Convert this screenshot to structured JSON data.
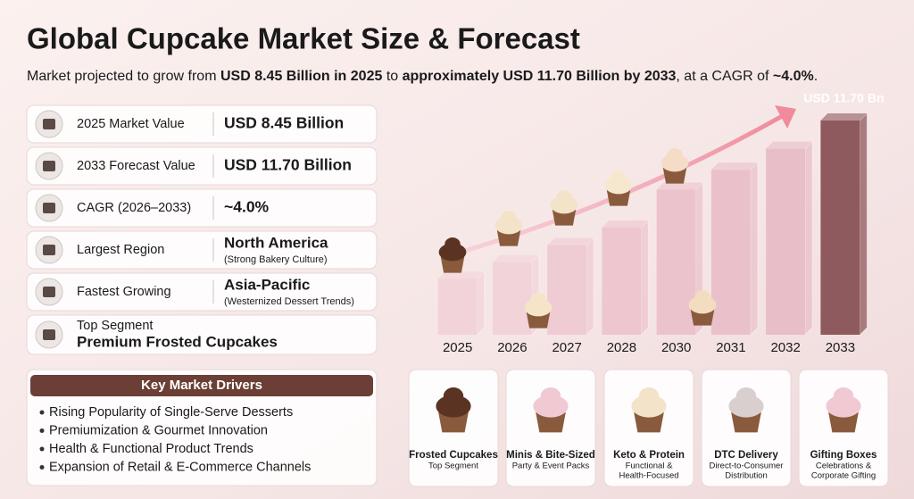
{
  "title": "Global Cupcake Market Size & Forecast",
  "subtitle": [
    {
      "text": "Market projected to grow from ",
      "bold": false
    },
    {
      "text": "USD 8.45 Billion in 2025",
      "bold": true
    },
    {
      "text": " to ",
      "bold": false
    },
    {
      "text": "approximately USD 11.70 Billion by 2033",
      "bold": true
    },
    {
      "text": ", at a CAGR of ",
      "bold": false
    },
    {
      "text": "~4.0%",
      "bold": true
    },
    {
      "text": ".",
      "bold": false
    }
  ],
  "metrics": [
    {
      "label": "2025 Market Value",
      "value": "USD 8.45 Billion"
    },
    {
      "label": "2033 Forecast Value",
      "value": "USD 11.70 Billion"
    },
    {
      "label": "CAGR (2026–2033)",
      "value": "~4.0%"
    },
    {
      "label": "Largest Region",
      "value": "North America",
      "note": "(Strong Bakery Culture)"
    },
    {
      "label": "Fastest Growing",
      "value": "Asia-Pacific",
      "note": "(Westernized Dessert Trends)"
    },
    {
      "label": "Top Segment",
      "value": "Premium Frosted Cupcakes"
    }
  ],
  "drivers": {
    "title": "Key Market Drivers",
    "items": [
      "Rising Popularity of Single-Serve Desserts",
      "Premiumization & Gourmet Innovation",
      "Health & Functional Product Trends",
      "Expansion of Retail & E-Commerce Channels"
    ]
  },
  "chart_data": {
    "type": "bar",
    "categories": [
      "2025",
      "2026",
      "2027",
      "2028",
      "2030",
      "2031",
      "2032",
      "2033"
    ],
    "values": [
      8.45,
      8.79,
      9.14,
      9.5,
      10.28,
      10.69,
      11.12,
      11.7
    ],
    "value_labels": [
      null,
      null,
      null,
      null,
      null,
      null,
      null,
      "USD 11.70 Bn"
    ],
    "colors": [
      "#f2d3d9",
      "#f2d3d9",
      "#efcbd3",
      "#edc6cf",
      "#ebc3cc",
      "#eac1ca",
      "#e8bec8",
      "#8f5a5e"
    ],
    "ylim": [
      7.3,
      11.7
    ]
  },
  "segments": [
    {
      "title": "Frosted Cupcakes",
      "subtitle": [
        "Top Segment"
      ]
    },
    {
      "title": "Minis & Bite-Sized",
      "subtitle": [
        "Party & Event Packs"
      ]
    },
    {
      "title": "Keto & Protein",
      "subtitle": [
        "Functional &",
        "Health-Focused"
      ]
    },
    {
      "title": "DTC Delivery",
      "subtitle": [
        "Direct-to-Consumer",
        "Distribution"
      ]
    },
    {
      "title": "Gifting Boxes",
      "subtitle": [
        "Celebrations &",
        "Corporate Gifting"
      ]
    }
  ]
}
